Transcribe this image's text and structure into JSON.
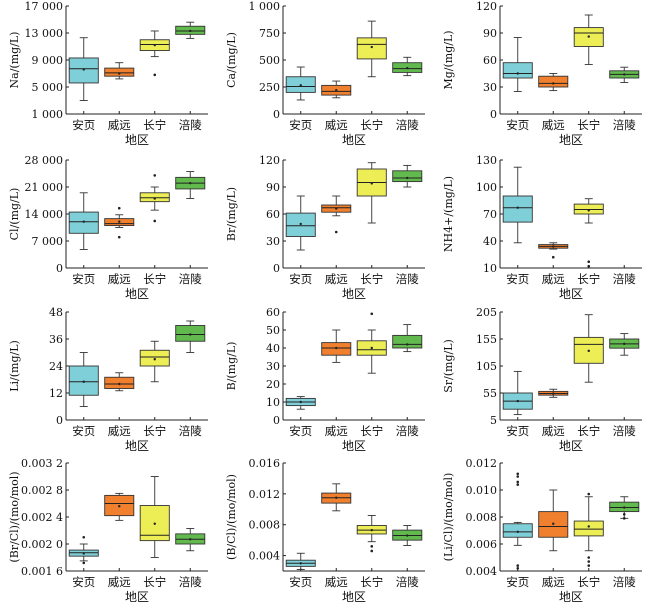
{
  "colors": {
    "安页": "#7fcfd8",
    "威远": "#f07f2e",
    "长宁": "#eded55",
    "涪陵": "#62b94e",
    "axis": "#222222"
  },
  "chart_data": [
    {
      "type": "box",
      "xlabel": "地区",
      "ylabel": "Na/(mg/L)",
      "ylim": [
        1000,
        17000
      ],
      "yticks": [
        1000,
        5000,
        9000,
        13000,
        17000
      ],
      "tick_labels": [
        "1 000",
        "5 000",
        "9 000",
        "13 000",
        "17 000"
      ],
      "categories": [
        "安页",
        "威远",
        "长宁",
        "涪陵"
      ],
      "boxes": [
        {
          "whislo": 3000,
          "q1": 5600,
          "med": 7700,
          "q3": 9300,
          "whishi": 12300,
          "mean": 7600,
          "fliers": []
        },
        {
          "whislo": 6200,
          "q1": 6600,
          "med": 7100,
          "q3": 7800,
          "whishi": 8600,
          "mean": 7000,
          "fliers": []
        },
        {
          "whislo": 9500,
          "q1": 10400,
          "med": 11300,
          "q3": 12000,
          "whishi": 13300,
          "mean": 11200,
          "fliers": [
            6800
          ]
        },
        {
          "whislo": 12200,
          "q1": 12800,
          "med": 13300,
          "q3": 14000,
          "whishi": 14600,
          "mean": 13300,
          "fliers": []
        }
      ]
    },
    {
      "type": "box",
      "xlabel": "地区",
      "ylabel": "Ca/(mg/L)",
      "ylim": [
        0,
        1000
      ],
      "yticks": [
        0,
        250,
        500,
        750,
        1000
      ],
      "tick_labels": [
        "0",
        "250",
        "500",
        "750",
        "1 000"
      ],
      "categories": [
        "安页",
        "威远",
        "长宁",
        "涪陵"
      ],
      "boxes": [
        {
          "whislo": 130,
          "q1": 200,
          "med": 255,
          "q3": 345,
          "whishi": 435,
          "mean": 265,
          "fliers": []
        },
        {
          "whislo": 150,
          "q1": 175,
          "med": 210,
          "q3": 265,
          "whishi": 305,
          "mean": 220,
          "fliers": []
        },
        {
          "whislo": 345,
          "q1": 510,
          "med": 645,
          "q3": 705,
          "whishi": 860,
          "mean": 620,
          "fliers": []
        },
        {
          "whislo": 355,
          "q1": 385,
          "med": 420,
          "q3": 475,
          "whishi": 525,
          "mean": 425,
          "fliers": []
        }
      ]
    },
    {
      "type": "box",
      "xlabel": "地区",
      "ylabel": "Mg/(mg/L)",
      "ylim": [
        0,
        120
      ],
      "yticks": [
        0,
        30,
        60,
        90,
        120
      ],
      "tick_labels": [
        "0",
        "30",
        "60",
        "90",
        "120"
      ],
      "categories": [
        "安页",
        "威远",
        "长宁",
        "涪陵"
      ],
      "boxes": [
        {
          "whislo": 25,
          "q1": 40,
          "med": 45,
          "q3": 57,
          "whishi": 85,
          "mean": 45,
          "fliers": []
        },
        {
          "whislo": 26,
          "q1": 30,
          "med": 34,
          "q3": 42,
          "whishi": 45,
          "mean": 34,
          "fliers": []
        },
        {
          "whislo": 55,
          "q1": 75,
          "med": 90,
          "q3": 96,
          "whishi": 110,
          "mean": 86,
          "fliers": []
        },
        {
          "whislo": 35,
          "q1": 40,
          "med": 44,
          "q3": 48,
          "whishi": 52,
          "mean": 44,
          "fliers": []
        }
      ]
    },
    {
      "type": "box",
      "xlabel": "地区",
      "ylabel": "Cl/(mg/L)",
      "ylim": [
        0,
        28000
      ],
      "yticks": [
        0,
        7000,
        14000,
        21000,
        28000
      ],
      "tick_labels": [
        "0",
        "7 000",
        "14 000",
        "21 000",
        "28 000"
      ],
      "categories": [
        "安页",
        "威远",
        "长宁",
        "涪陵"
      ],
      "boxes": [
        {
          "whislo": 4800,
          "q1": 9000,
          "med": 12000,
          "q3": 14500,
          "whishi": 19500,
          "mean": 12000,
          "fliers": []
        },
        {
          "whislo": 10500,
          "q1": 11000,
          "med": 11500,
          "q3": 12800,
          "whishi": 13800,
          "mean": 12000,
          "fliers": [
            15500,
            8000
          ]
        },
        {
          "whislo": 15000,
          "q1": 17200,
          "med": 18200,
          "q3": 19500,
          "whishi": 21000,
          "mean": 18000,
          "fliers": [
            24000,
            12200
          ]
        },
        {
          "whislo": 18000,
          "q1": 20500,
          "med": 22000,
          "q3": 23500,
          "whishi": 25000,
          "mean": 22000,
          "fliers": []
        }
      ]
    },
    {
      "type": "box",
      "xlabel": "地区",
      "ylabel": "Br/(mg/L)",
      "ylim": [
        0,
        120
      ],
      "yticks": [
        0,
        30,
        60,
        90,
        120
      ],
      "tick_labels": [
        "0",
        "30",
        "60",
        "90",
        "120"
      ],
      "categories": [
        "安页",
        "威远",
        "长宁",
        "涪陵"
      ],
      "boxes": [
        {
          "whislo": 20,
          "q1": 35,
          "med": 47,
          "q3": 61,
          "whishi": 80,
          "mean": 49,
          "fliers": []
        },
        {
          "whislo": 58,
          "q1": 62,
          "med": 67,
          "q3": 70,
          "whishi": 80,
          "mean": 66,
          "fliers": [
            40
          ]
        },
        {
          "whislo": 50,
          "q1": 80,
          "med": 95,
          "q3": 110,
          "whishi": 117,
          "mean": 94,
          "fliers": []
        },
        {
          "whislo": 90,
          "q1": 96,
          "med": 100,
          "q3": 108,
          "whishi": 114,
          "mean": 100,
          "fliers": []
        }
      ]
    },
    {
      "type": "box",
      "xlabel": "地区",
      "ylabel": "NH4+/(mg/L)",
      "ylim": [
        10,
        130
      ],
      "yticks": [
        10,
        40,
        70,
        100,
        130
      ],
      "tick_labels": [
        "10",
        "40",
        "70",
        "100",
        "130"
      ],
      "categories": [
        "安页",
        "威远",
        "长宁",
        "涪陵"
      ],
      "boxes": [
        {
          "whislo": 38,
          "q1": 61,
          "med": 77,
          "q3": 90,
          "whishi": 122,
          "mean": 77,
          "fliers": []
        },
        {
          "whislo": 31,
          "q1": 32,
          "med": 34,
          "q3": 36,
          "whishi": 38,
          "mean": 34,
          "fliers": [
            22
          ]
        },
        {
          "whislo": 60,
          "q1": 70,
          "med": 75,
          "q3": 81,
          "whishi": 87,
          "mean": 74,
          "fliers": [
            17,
            12
          ]
        },
        null
      ]
    },
    {
      "type": "box",
      "xlabel": "地区",
      "ylabel": "Li/(mg/L)",
      "ylim": [
        0,
        48
      ],
      "yticks": [
        0,
        12,
        24,
        36,
        48
      ],
      "tick_labels": [
        "0",
        "12",
        "24",
        "36",
        "48"
      ],
      "categories": [
        "安页",
        "威远",
        "长宁",
        "涪陵"
      ],
      "boxes": [
        {
          "whislo": 6,
          "q1": 11,
          "med": 17,
          "q3": 24,
          "whishi": 30,
          "mean": 17,
          "fliers": []
        },
        {
          "whislo": 13,
          "q1": 14,
          "med": 16,
          "q3": 19,
          "whishi": 21,
          "mean": 16,
          "fliers": []
        },
        {
          "whislo": 17,
          "q1": 24,
          "med": 28,
          "q3": 31,
          "whishi": 35,
          "mean": 27,
          "fliers": []
        },
        {
          "whislo": 30,
          "q1": 35,
          "med": 38,
          "q3": 42,
          "whishi": 44,
          "mean": 38,
          "fliers": []
        }
      ]
    },
    {
      "type": "box",
      "xlabel": "地区",
      "ylabel": "B/(mg/L)",
      "ylim": [
        0,
        60
      ],
      "yticks": [
        0,
        10,
        20,
        30,
        40,
        50,
        60
      ],
      "tick_labels": [
        "0",
        "10",
        "20",
        "30",
        "40",
        "50",
        "60"
      ],
      "categories": [
        "安页",
        "威远",
        "长宁",
        "涪陵"
      ],
      "boxes": [
        {
          "whislo": 6,
          "q1": 8,
          "med": 10,
          "q3": 12,
          "whishi": 13,
          "mean": 10,
          "fliers": []
        },
        {
          "whislo": 32,
          "q1": 36,
          "med": 40,
          "q3": 43,
          "whishi": 50,
          "mean": 40,
          "fliers": []
        },
        {
          "whislo": 26,
          "q1": 36,
          "med": 39,
          "q3": 44,
          "whishi": 50,
          "mean": 40,
          "fliers": [
            59
          ]
        },
        {
          "whislo": 38,
          "q1": 40,
          "med": 42,
          "q3": 47,
          "whishi": 53,
          "mean": 42,
          "fliers": []
        }
      ]
    },
    {
      "type": "box",
      "xlabel": "地区",
      "ylabel": "Sr/(mg/L)",
      "ylim": [
        5,
        205
      ],
      "yticks": [
        5,
        55,
        105,
        155,
        205
      ],
      "tick_labels": [
        "5",
        "55",
        "105",
        "155",
        "205"
      ],
      "categories": [
        "安页",
        "威远",
        "长宁",
        "涪陵"
      ],
      "boxes": [
        {
          "whislo": 15,
          "q1": 25,
          "med": 40,
          "q3": 55,
          "whishi": 95,
          "mean": 40,
          "fliers": []
        },
        {
          "whislo": 47,
          "q1": 51,
          "med": 54,
          "q3": 58,
          "whishi": 62,
          "mean": 54,
          "fliers": []
        },
        {
          "whislo": 75,
          "q1": 110,
          "med": 145,
          "q3": 158,
          "whishi": 200,
          "mean": 133,
          "fliers": []
        },
        {
          "whislo": 125,
          "q1": 138,
          "med": 146,
          "q3": 155,
          "whishi": 165,
          "mean": 146,
          "fliers": []
        }
      ]
    },
    {
      "type": "box",
      "xlabel": "地区",
      "ylabel": "(Br/Cl)/(mo/mol)",
      "ylim": [
        0.0016,
        0.0032
      ],
      "yticks": [
        0.0016,
        0.002,
        0.0024,
        0.0028,
        0.0032
      ],
      "tick_labels": [
        "0.001 6",
        "0.002 0",
        "0.002 4",
        "0.002 8",
        "0.003 2"
      ],
      "categories": [
        "安页",
        "威远",
        "长宁",
        "涪陵"
      ],
      "boxes": [
        {
          "whislo": 0.00175,
          "q1": 0.00182,
          "med": 0.00187,
          "q3": 0.00191,
          "whishi": 0.002,
          "mean": 0.00186,
          "fliers": [
            0.0021,
            0.00172
          ]
        },
        {
          "whislo": 0.00235,
          "q1": 0.00242,
          "med": 0.0026,
          "q3": 0.00272,
          "whishi": 0.00275,
          "mean": 0.00256,
          "fliers": []
        },
        {
          "whislo": 0.0018,
          "q1": 0.00205,
          "med": 0.00213,
          "q3": 0.00257,
          "whishi": 0.003,
          "mean": 0.0023,
          "fliers": []
        },
        {
          "whislo": 0.0019,
          "q1": 0.002,
          "med": 0.00207,
          "q3": 0.00215,
          "whishi": 0.00223,
          "mean": 0.00207,
          "fliers": []
        }
      ]
    },
    {
      "type": "box",
      "xlabel": "地区",
      "ylabel": "(B/Cl)/(mo/mol)",
      "ylim": [
        0.002,
        0.016
      ],
      "yticks": [
        0.004,
        0.008,
        0.012,
        0.016
      ],
      "tick_labels": [
        "0.004",
        "0.008",
        "0.012",
        "0.016"
      ],
      "categories": [
        "安页",
        "威远",
        "长宁",
        "涪陵"
      ],
      "boxes": [
        {
          "whislo": 0.0022,
          "q1": 0.0026,
          "med": 0.003,
          "q3": 0.0034,
          "whishi": 0.0043,
          "mean": 0.003,
          "fliers": []
        },
        {
          "whislo": 0.0098,
          "q1": 0.0108,
          "med": 0.0115,
          "q3": 0.0121,
          "whishi": 0.0133,
          "mean": 0.0115,
          "fliers": []
        },
        {
          "whislo": 0.0058,
          "q1": 0.0068,
          "med": 0.0073,
          "q3": 0.0079,
          "whishi": 0.0092,
          "mean": 0.0073,
          "fliers": [
            0.0052,
            0.0046
          ]
        },
        {
          "whislo": 0.0053,
          "q1": 0.006,
          "med": 0.0066,
          "q3": 0.0073,
          "whishi": 0.0079,
          "mean": 0.0066,
          "fliers": []
        }
      ]
    },
    {
      "type": "box",
      "xlabel": "地区",
      "ylabel": "(Li/Cl)/(mo/mol)",
      "ylim": [
        0.004,
        0.012
      ],
      "yticks": [
        0.004,
        0.006,
        0.008,
        0.01,
        0.012
      ],
      "tick_labels": [
        "0.004",
        "0.006",
        "0.008",
        "0.010",
        "0.012"
      ],
      "categories": [
        "安页",
        "威远",
        "长宁",
        "涪陵"
      ],
      "boxes": [
        {
          "whislo": 0.0059,
          "q1": 0.0065,
          "med": 0.0069,
          "q3": 0.0075,
          "whishi": 0.0076,
          "mean": 0.0069,
          "fliers": [
            0.0112,
            0.011,
            0.0106,
            0.0104,
            0.0044,
            0.0042
          ]
        },
        {
          "whislo": 0.0055,
          "q1": 0.0065,
          "med": 0.0073,
          "q3": 0.0084,
          "whishi": 0.01,
          "mean": 0.0075,
          "fliers": []
        },
        {
          "whislo": 0.0055,
          "q1": 0.0066,
          "med": 0.0071,
          "q3": 0.0077,
          "whishi": 0.0095,
          "mean": 0.0073,
          "fliers": [
            0.0097,
            0.005,
            0.0047,
            0.0044
          ]
        },
        {
          "whislo": 0.0079,
          "q1": 0.0084,
          "med": 0.0087,
          "q3": 0.0091,
          "whishi": 0.0095,
          "mean": 0.0087,
          "fliers": [
            0.0082,
            0.0079
          ]
        }
      ]
    }
  ]
}
